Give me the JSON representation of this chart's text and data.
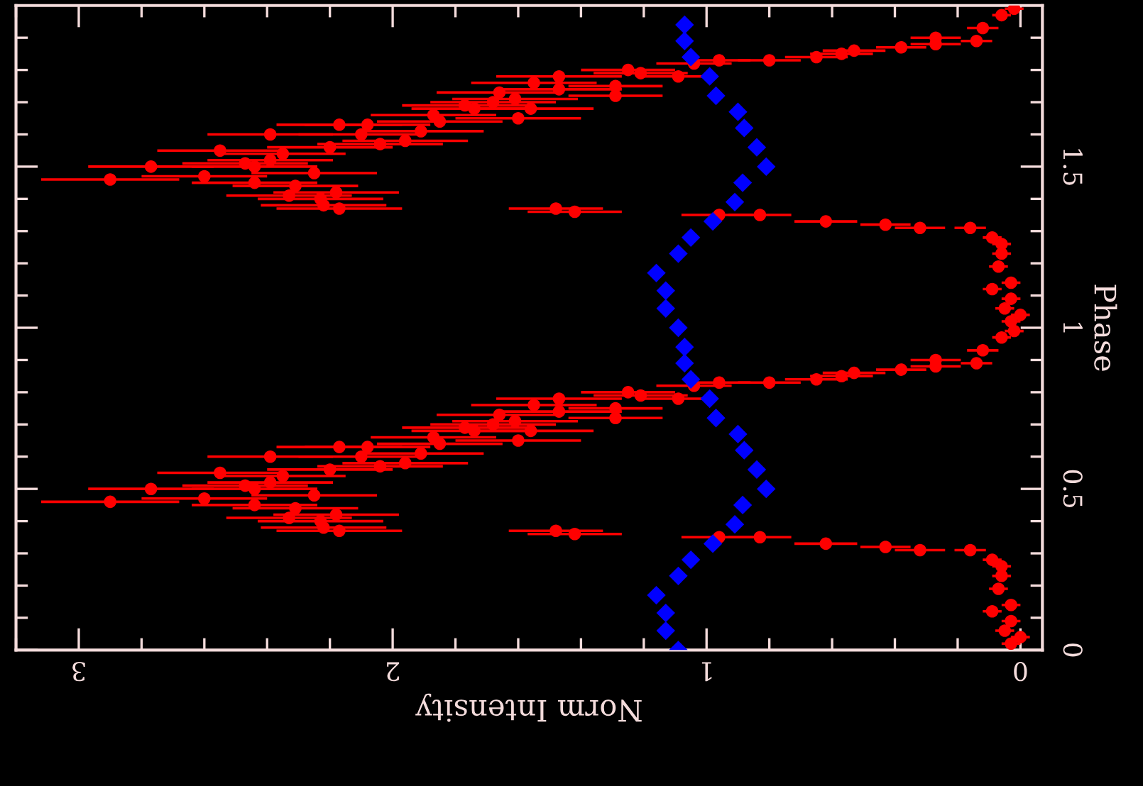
{
  "chart_data": {
    "type": "scatter",
    "xlabel": "Norm Intensity",
    "ylabel": "Phase",
    "xlim": [
      3.2,
      -0.07
    ],
    "ylim": [
      0,
      2
    ],
    "xticks": [
      0,
      1,
      2,
      3,
      {
        "value": 0.2,
        "label": null
      },
      {
        "value": 0.4,
        "label": null
      },
      {
        "value": 0.6,
        "label": null
      },
      {
        "value": 0.8,
        "label": null
      },
      {
        "value": 1.2,
        "label": null
      },
      {
        "value": 1.4,
        "label": null
      },
      {
        "value": 1.6,
        "label": null
      },
      {
        "value": 1.8,
        "label": null
      },
      {
        "value": 2.2,
        "label": null
      },
      {
        "value": 2.4,
        "label": null
      },
      {
        "value": 2.6,
        "label": null
      },
      {
        "value": 2.8,
        "label": null
      },
      {
        "value": 3.2,
        "label": null
      }
    ],
    "yticks": [
      0,
      0.5,
      1,
      1.5,
      {
        "value": 0.1,
        "label": null
      },
      {
        "value": 0.2,
        "label": null
      },
      {
        "value": 0.3,
        "label": null
      },
      {
        "value": 0.4,
        "label": null
      },
      {
        "value": 0.6,
        "label": null
      },
      {
        "value": 0.7,
        "label": null
      },
      {
        "value": 0.8,
        "label": null
      },
      {
        "value": 0.9,
        "label": null
      },
      {
        "value": 1.1,
        "label": null
      },
      {
        "value": 1.2,
        "label": null
      },
      {
        "value": 1.3,
        "label": null
      },
      {
        "value": 1.4,
        "label": null
      },
      {
        "value": 1.6,
        "label": null
      },
      {
        "value": 1.7,
        "label": null
      },
      {
        "value": 1.8,
        "label": null
      },
      {
        "value": 1.9,
        "label": null
      }
    ],
    "grid": false,
    "legend": false,
    "series": [
      {
        "color": "#ff0000",
        "marker": "circle",
        "x": [
          2.9,
          2.77,
          2.6,
          2.55,
          2.47,
          2.44,
          2.39,
          2.39,
          2.35,
          2.44,
          2.31,
          2.33,
          2.25,
          2.2,
          2.17,
          2.23,
          2.18,
          2.17,
          2.22,
          2.08,
          2.1,
          2.04,
          1.96,
          1.91,
          1.87,
          1.85,
          1.77,
          1.74,
          1.66,
          1.68,
          1.61,
          1.6,
          1.56,
          1.55,
          1.47,
          1.47,
          1.48,
          1.42,
          1.29,
          1.29,
          1.25,
          1.21,
          1.09,
          1.04,
          0.96,
          0.8,
          0.65,
          0.57,
          0.53,
          0.38,
          0.27,
          0.27,
          0.14,
          0.12,
          0.06,
          0.02,
          0.96,
          0.83,
          0.62,
          0.43,
          0.32,
          0.16,
          0.09,
          0.06,
          0.09,
          0.07,
          0.03,
          0.03,
          0.0,
          0.03,
          0.05,
          0.06
        ],
        "values": [
          0.46,
          0.5,
          0.47,
          0.55,
          0.51,
          0.5,
          0.6,
          0.52,
          0.54,
          0.45,
          0.44,
          0.41,
          0.48,
          0.56,
          0.63,
          0.4,
          0.42,
          0.37,
          0.38,
          0.63,
          0.6,
          0.57,
          0.58,
          0.61,
          0.66,
          0.64,
          0.69,
          0.68,
          0.73,
          0.7,
          0.71,
          0.65,
          0.68,
          0.76,
          0.78,
          0.74,
          0.37,
          0.36,
          0.75,
          0.72,
          0.8,
          0.79,
          0.78,
          0.82,
          0.83,
          0.83,
          0.84,
          0.85,
          0.86,
          0.87,
          0.9,
          0.88,
          0.89,
          0.93,
          0.97,
          0.99,
          0.35,
          0.35,
          0.33,
          0.32,
          0.31,
          0.31,
          0.28,
          0.23,
          0.12,
          0.19,
          0.14,
          0.09,
          0.04,
          0.02,
          0.06,
          0.26
        ],
        "xerrors": [
          0.22,
          0.2,
          0.2,
          0.2,
          0.2,
          0.2,
          0.2,
          0.2,
          0.2,
          0.2,
          0.2,
          0.2,
          0.2,
          0.2,
          0.2,
          0.2,
          0.2,
          0.2,
          0.2,
          0.2,
          0.2,
          0.2,
          0.2,
          0.2,
          0.2,
          0.2,
          0.2,
          0.2,
          0.2,
          0.2,
          0.2,
          0.2,
          0.2,
          0.2,
          0.2,
          0.2,
          0.15,
          0.15,
          0.15,
          0.15,
          0.15,
          0.15,
          0.12,
          0.12,
          0.1,
          0.1,
          0.1,
          0.1,
          0.1,
          0.08,
          0.08,
          0.08,
          0.05,
          0.05,
          0.03,
          0.03,
          0.12,
          0.1,
          0.1,
          0.08,
          0.08,
          0.05,
          0.03,
          0.03,
          0.03,
          0.03,
          0.03,
          0.03,
          0.03,
          0.03,
          0.03,
          0.03
        ]
      },
      {
        "color": "#ff0000",
        "marker": "circle",
        "x": [
          2.9,
          2.77,
          2.6,
          2.55,
          2.47,
          2.44,
          2.39,
          2.39,
          2.35,
          2.44,
          2.31,
          2.33,
          2.25,
          2.2,
          2.17,
          2.23,
          2.18,
          2.17,
          2.22,
          2.08,
          2.1,
          2.04,
          1.96,
          1.91,
          1.87,
          1.85,
          1.77,
          1.74,
          1.66,
          1.68,
          1.61,
          1.6,
          1.56,
          1.55,
          1.47,
          1.47,
          1.48,
          1.42,
          1.29,
          1.29,
          1.25,
          1.21,
          1.09,
          1.04,
          0.96,
          0.8,
          0.65,
          0.57,
          0.53,
          0.38,
          0.27,
          0.27,
          0.14,
          0.12,
          0.06,
          0.02,
          0.96,
          0.83,
          0.62,
          0.43,
          0.32,
          0.16,
          0.09,
          0.06,
          0.09,
          0.07,
          0.03,
          0.03,
          0.0,
          0.03,
          0.05,
          0.06
        ],
        "values": [
          1.46,
          1.5,
          1.47,
          1.55,
          1.51,
          1.5,
          1.6,
          1.52,
          1.54,
          1.45,
          1.44,
          1.41,
          1.48,
          1.56,
          1.63,
          1.4,
          1.42,
          1.37,
          1.38,
          1.63,
          1.6,
          1.57,
          1.58,
          1.61,
          1.66,
          1.64,
          1.69,
          1.68,
          1.73,
          1.7,
          1.71,
          1.65,
          1.68,
          1.76,
          1.78,
          1.74,
          1.37,
          1.36,
          1.75,
          1.72,
          1.8,
          1.79,
          1.78,
          1.82,
          1.83,
          1.83,
          1.84,
          1.85,
          1.86,
          1.87,
          1.9,
          1.88,
          1.89,
          1.93,
          1.97,
          1.99,
          1.35,
          1.35,
          1.33,
          1.32,
          1.31,
          1.31,
          1.28,
          1.23,
          1.12,
          1.19,
          1.14,
          1.09,
          1.04,
          1.02,
          1.06,
          1.26
        ],
        "xerrors": [
          0.22,
          0.2,
          0.2,
          0.2,
          0.2,
          0.2,
          0.2,
          0.2,
          0.2,
          0.2,
          0.2,
          0.2,
          0.2,
          0.2,
          0.2,
          0.2,
          0.2,
          0.2,
          0.2,
          0.2,
          0.2,
          0.2,
          0.2,
          0.2,
          0.2,
          0.2,
          0.2,
          0.2,
          0.2,
          0.2,
          0.2,
          0.2,
          0.2,
          0.2,
          0.2,
          0.2,
          0.15,
          0.15,
          0.15,
          0.15,
          0.15,
          0.15,
          0.12,
          0.12,
          0.1,
          0.1,
          0.1,
          0.1,
          0.1,
          0.08,
          0.08,
          0.08,
          0.05,
          0.05,
          0.03,
          0.03,
          0.12,
          0.1,
          0.1,
          0.08,
          0.08,
          0.05,
          0.03,
          0.03,
          0.03,
          0.03,
          0.03,
          0.03,
          0.03,
          0.03,
          0.03,
          0.03
        ]
      },
      {
        "color": "#0000ff",
        "marker": "diamond",
        "x": [
          1.09,
          1.13,
          1.13,
          1.16,
          1.09,
          1.05,
          0.98,
          0.91,
          0.885,
          0.81,
          0.84,
          0.88,
          0.9,
          0.97,
          0.99,
          1.05,
          1.07,
          1.07,
          1.09,
          1.13,
          1.13,
          1.16,
          1.09,
          1.05,
          0.98,
          0.91,
          0.885,
          0.81,
          0.84,
          0.88,
          0.9,
          0.97,
          0.99,
          1.05,
          1.07,
          1.07
        ],
        "values": [
          0.0,
          0.06,
          0.115,
          0.17,
          0.23,
          0.28,
          0.33,
          0.39,
          0.45,
          0.5,
          0.56,
          0.62,
          0.67,
          0.72,
          0.78,
          0.84,
          0.89,
          0.94,
          1.0,
          1.06,
          1.115,
          1.17,
          1.23,
          1.28,
          1.33,
          1.39,
          1.45,
          1.5,
          1.56,
          1.62,
          1.67,
          1.72,
          1.78,
          1.84,
          1.89,
          1.94
        ]
      }
    ]
  }
}
